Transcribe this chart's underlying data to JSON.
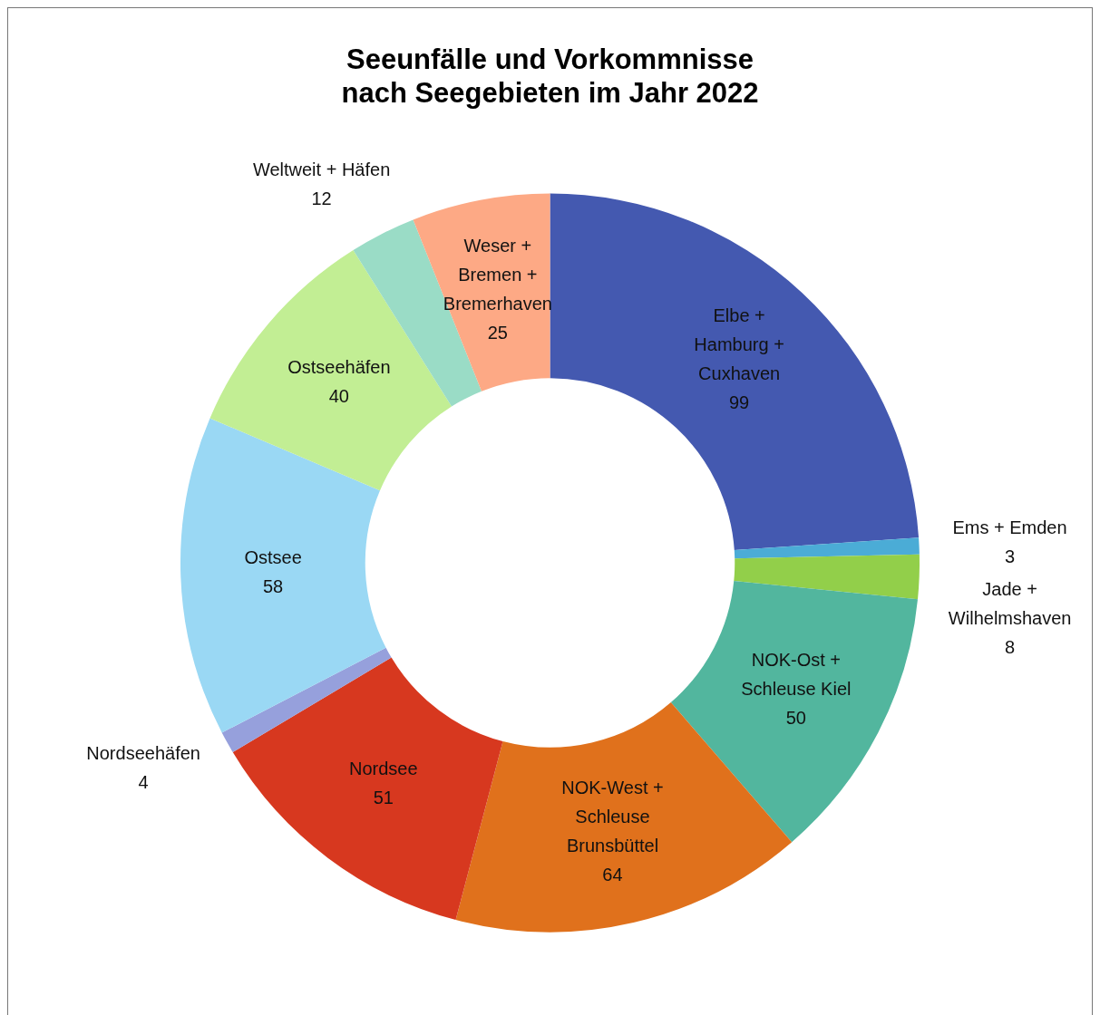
{
  "chart_data": {
    "type": "donut",
    "title": "Seeunfälle und Vorkommnisse nach Seegebieten im Jahr 2022",
    "categories": [
      "Elbe + Hamburg + Cuxhaven",
      "Ems + Emden",
      "Jade + Wilhelmshaven",
      "NOK-Ost + Schleuse Kiel",
      "NOK-West + Schleuse Brunsbüttel",
      "Nordsee",
      "Nordseehäfen",
      "Ostsee",
      "Ostseehäfen",
      "Weltweit + Häfen",
      "Weser + Bremen + Bremerhaven"
    ],
    "values": [
      99,
      3,
      8,
      50,
      64,
      51,
      4,
      58,
      40,
      12,
      25
    ],
    "colors": [
      "#4459b0",
      "#4bacd6",
      "#92cf4a",
      "#52b69e",
      "#e0711c",
      "#d7381f",
      "#96a0dc",
      "#9ad8f4",
      "#c2ee94",
      "#9adcc6",
      "#fda985"
    ],
    "data_labels": true,
    "legend": false
  }
}
